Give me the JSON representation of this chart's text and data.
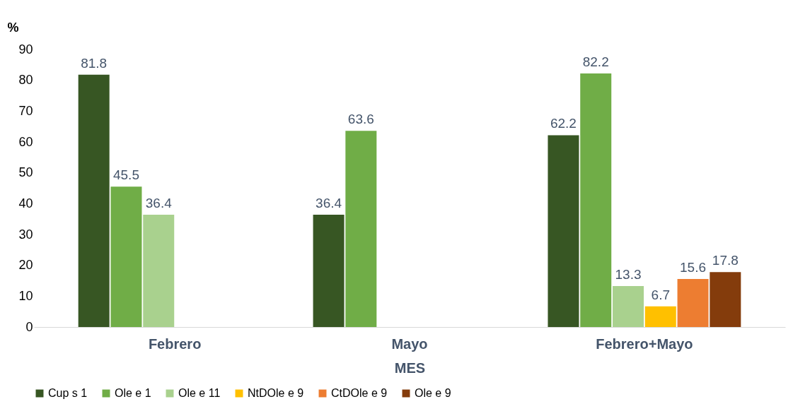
{
  "chart_data": {
    "type": "bar",
    "xlabel": "MES",
    "ylabel": "%",
    "categories": [
      "Febrero",
      "Mayo",
      "Febrero+Mayo"
    ],
    "series": [
      {
        "name": "Cup s 1",
        "color": "#375623",
        "values": [
          81.8,
          36.4,
          62.2
        ]
      },
      {
        "name": "Ole e 1",
        "color": "#70ad47",
        "values": [
          45.5,
          63.6,
          82.2
        ]
      },
      {
        "name": "Ole e 11",
        "color": "#a9d18e",
        "values": [
          36.4,
          null,
          13.3
        ]
      },
      {
        "name": "NtDOle e 9",
        "color": "#ffc000",
        "values": [
          null,
          null,
          6.7
        ]
      },
      {
        "name": "CtDOle e 9",
        "color": "#ed7d31",
        "values": [
          null,
          null,
          15.6
        ]
      },
      {
        "name": "Ole e 9",
        "color": "#843c0c",
        "values": [
          null,
          null,
          17.8
        ]
      }
    ],
    "ylim": [
      0,
      90
    ],
    "yticks": [
      0,
      10,
      20,
      30,
      40,
      50,
      60,
      70,
      80,
      90
    ],
    "data_labels": true,
    "grid": false,
    "legend": "bottom"
  }
}
